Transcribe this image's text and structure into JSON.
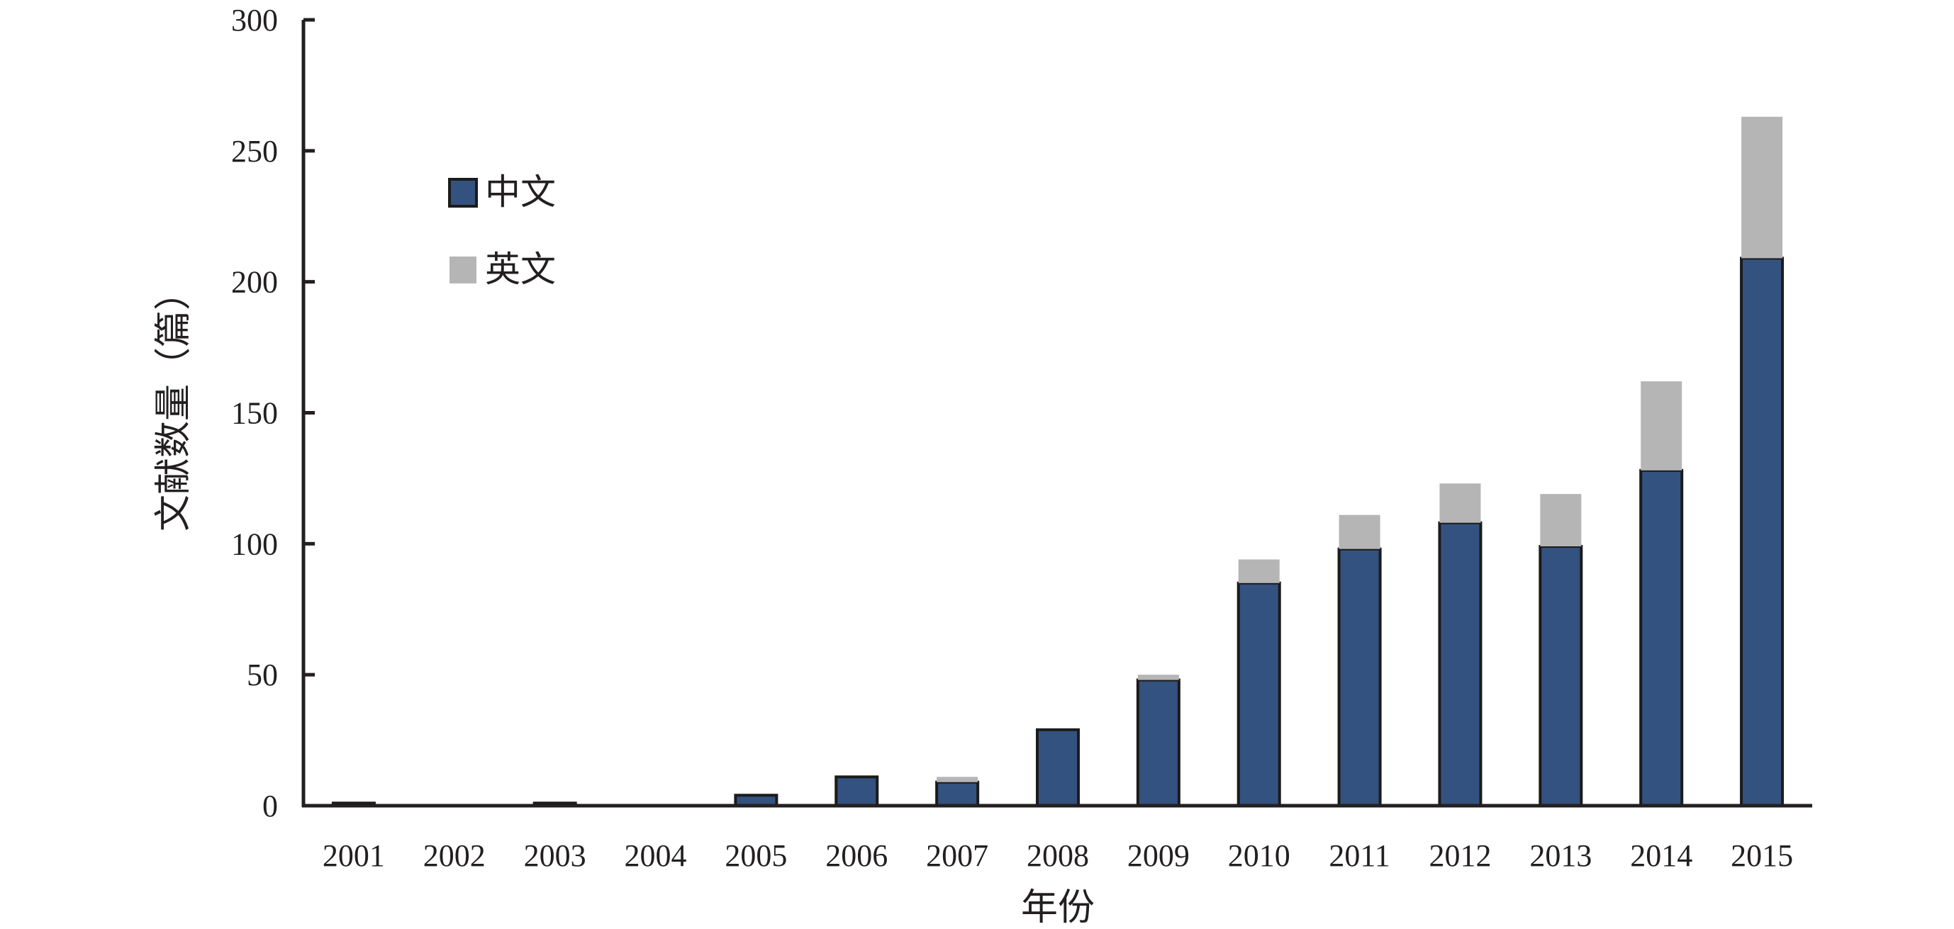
{
  "chart_data": {
    "type": "bar",
    "stacked": true,
    "categories": [
      "2001",
      "2002",
      "2003",
      "2004",
      "2005",
      "2006",
      "2007",
      "2008",
      "2009",
      "2010",
      "2011",
      "2012",
      "2013",
      "2014",
      "2015"
    ],
    "series": [
      {
        "name": "中文",
        "color": "#34527f",
        "values": [
          1,
          0,
          1,
          0,
          4,
          11,
          9,
          29,
          48,
          85,
          98,
          108,
          99,
          128,
          209
        ]
      },
      {
        "name": "英文",
        "color": "#b5b5b5",
        "values": [
          0,
          0,
          0,
          0,
          0,
          0,
          2,
          0,
          2,
          9,
          13,
          15,
          20,
          34,
          54
        ]
      }
    ],
    "xlabel": "年份",
    "ylabel": "文献数量（篇）",
    "ylim": [
      0,
      300
    ],
    "yticks": [
      0,
      50,
      100,
      150,
      200,
      250,
      300
    ],
    "grid": false,
    "legend_position": "top-left"
  }
}
